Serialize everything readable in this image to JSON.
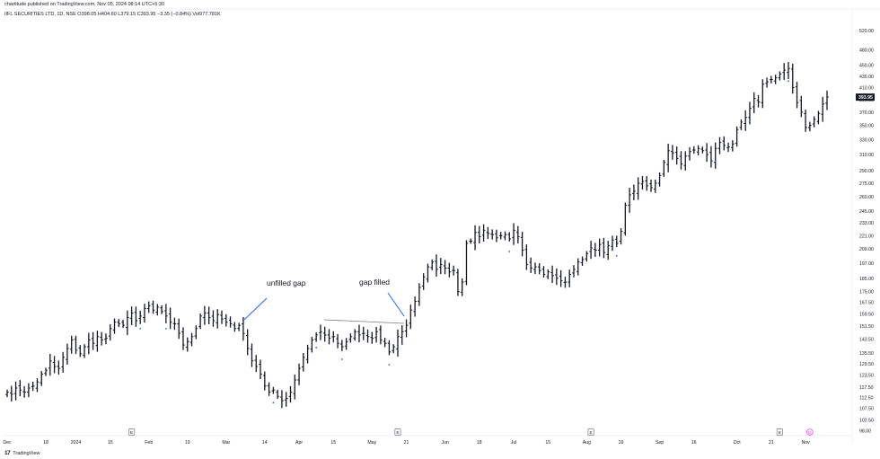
{
  "header": {
    "published": "chartitude published on TradingView.com, Nov 05, 2024 08:14 UTC+5:30",
    "symbol_line": "IIFL SECURITIES LTD, 1D, NSE   O398.05  H404.60  L379.15  C393.95  −3.35 (−0.84%)  Vol977.781K"
  },
  "footer": {
    "brand": "TradingView",
    "logo": "17"
  },
  "colors": {
    "bar": "#131722",
    "annotation_line": "#2962ff",
    "gap_line": "#787b86",
    "event_marker": "#2962ff",
    "price_badge_bg": "#131722",
    "price_badge_text": "#ffffff",
    "dividend_marker": "#e040fb"
  },
  "chart_data": {
    "type": "ohlc",
    "title": "",
    "xlabel": "",
    "ylabel": "",
    "scale": "log",
    "ylim": [
      97,
      540
    ],
    "last_price": "393.95",
    "y_ticks": [
      "520.00",
      "480.00",
      "450.00",
      "430.00",
      "410.00",
      "390.00",
      "370.00",
      "350.00",
      "330.00",
      "310.00",
      "290.00",
      "275.00",
      "260.00",
      "245.00",
      "233.00",
      "221.00",
      "209.00",
      "197.00",
      "185.00",
      "175.00",
      "167.50",
      "159.50",
      "151.50",
      "143.50",
      "135.50",
      "129.50",
      "123.50",
      "117.50",
      "112.50",
      "107.50",
      "102.50",
      "98.00"
    ],
    "x_ticks": [
      "Dec",
      "18",
      "2024",
      "15",
      "Feb",
      "19",
      "Mar",
      "14",
      "Apr",
      "15",
      "May",
      "21",
      "Jun",
      "18",
      "Jul",
      "15",
      "Aug",
      "19",
      "Sep",
      "16",
      "Oct",
      "21",
      "Nov"
    ],
    "x_tick_index": [
      0,
      9,
      16,
      24,
      33,
      42,
      51,
      60,
      68,
      76,
      85,
      93,
      102,
      110,
      118,
      126,
      135,
      143,
      152,
      160,
      170,
      178,
      186
    ],
    "event_markers": [
      {
        "label": "E",
        "index": 29
      },
      {
        "label": "E",
        "index": 91
      },
      {
        "label": "E",
        "index": 136
      },
      {
        "label": "E",
        "index": 180
      },
      {
        "label": "D",
        "index": 187
      }
    ],
    "closes": [
      115,
      114,
      117,
      116,
      115,
      117,
      118,
      120,
      124,
      126,
      131,
      128,
      127,
      133,
      138,
      143,
      137,
      135,
      139,
      143,
      141,
      145,
      143,
      144,
      150,
      154,
      153,
      152,
      157,
      160,
      155,
      158,
      163,
      165,
      162,
      164,
      161,
      158,
      154,
      153,
      147,
      140,
      142,
      145,
      150,
      158,
      160,
      157,
      155,
      159,
      156,
      154,
      153,
      150,
      152,
      147,
      138,
      131,
      128,
      124,
      118,
      115,
      116,
      113,
      111,
      112,
      115,
      121,
      127,
      133,
      138,
      143,
      146,
      148,
      146,
      144,
      145,
      141,
      139,
      142,
      145,
      148,
      146,
      147,
      145,
      144,
      148,
      143,
      141,
      136,
      139,
      145,
      148,
      152,
      162,
      168,
      178,
      186,
      194,
      198,
      192,
      196,
      193,
      190,
      191,
      175,
      182,
      214,
      216,
      224,
      220,
      226,
      223,
      222,
      219,
      221,
      222,
      218,
      226,
      220,
      208,
      196,
      193,
      194,
      191,
      188,
      190,
      187,
      185,
      183,
      182,
      188,
      192,
      198,
      200,
      205,
      210,
      208,
      213,
      206,
      212,
      217,
      214,
      225,
      251,
      262,
      266,
      275,
      277,
      272,
      270,
      275,
      284,
      300,
      315,
      312,
      305,
      298,
      308,
      314,
      316,
      318,
      315,
      310,
      302,
      318,
      326,
      322,
      320,
      324,
      344,
      355,
      362,
      376,
      392,
      386,
      416,
      420,
      424,
      427,
      434,
      441,
      444,
      410,
      385,
      370,
      347,
      350,
      359,
      368,
      383,
      394
    ]
  },
  "annotations": {
    "unfilled_gap": "unfilled gap",
    "gap_filled": "gap filled"
  }
}
